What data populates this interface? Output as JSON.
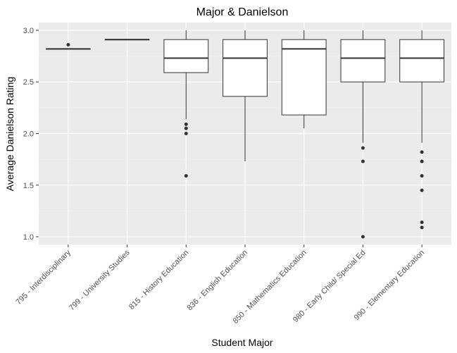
{
  "chart_data": {
    "type": "box",
    "title": "Major & Danielson",
    "xlabel": "Student Major",
    "ylabel": "Average Danielson Rating",
    "ylim": [
      0.925,
      3.075
    ],
    "yticks": [
      "1.0",
      "1.5",
      "2.0",
      "2.5",
      "3.0"
    ],
    "grid": true,
    "categories": [
      "795 - Interdisciplinary",
      "799 - University Studies",
      "815 - History Education",
      "836 - English Education",
      "850 - Mathematics Education",
      "980 - Early Child/ Special Ed",
      "990 - Elementary Education"
    ],
    "boxes": [
      {
        "min": 2.82,
        "q1": 2.82,
        "median": 2.82,
        "q3": 2.82,
        "max": 2.82,
        "outliers": [
          2.86
        ]
      },
      {
        "min": 2.91,
        "q1": 2.91,
        "median": 2.91,
        "q3": 2.91,
        "max": 2.91,
        "outliers": []
      },
      {
        "min": 2.14,
        "q1": 2.59,
        "median": 2.73,
        "q3": 2.91,
        "max": 3.0,
        "outliers": [
          2.09,
          2.05,
          2.0,
          1.59
        ]
      },
      {
        "min": 1.73,
        "q1": 2.36,
        "median": 2.73,
        "q3": 2.91,
        "max": 3.0,
        "outliers": []
      },
      {
        "min": 2.05,
        "q1": 2.18,
        "median": 2.82,
        "q3": 2.91,
        "max": 3.0,
        "outliers": []
      },
      {
        "min": 1.91,
        "q1": 2.5,
        "median": 2.73,
        "q3": 2.91,
        "max": 3.0,
        "outliers": [
          1.86,
          1.73,
          1.0
        ]
      },
      {
        "min": 1.91,
        "q1": 2.5,
        "median": 2.73,
        "q3": 2.91,
        "max": 3.0,
        "outliers": [
          1.82,
          1.73,
          1.59,
          1.45,
          1.14,
          1.09
        ]
      }
    ]
  },
  "colors": {
    "panel_bg": "#ebebeb",
    "grid_major": "#ffffff",
    "grid_minor": "#f5f5f5",
    "box_fill": "#ffffff",
    "line": "#333333",
    "tick": "#333333"
  }
}
